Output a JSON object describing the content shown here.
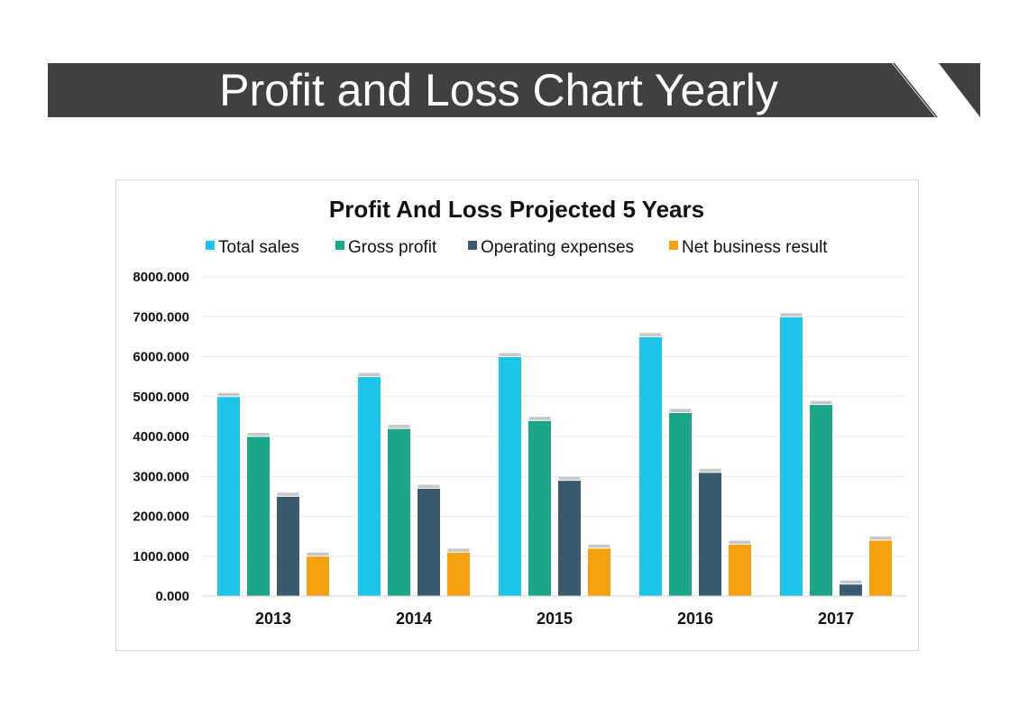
{
  "slide": {
    "title": "Profit and Loss Chart Yearly"
  },
  "colors": {
    "banner": "#404040",
    "total_sales": "#1DC5E8",
    "gross_profit": "#1BA68A",
    "operating_expenses": "#3A5A6D",
    "net_business_result": "#F5A10F"
  },
  "chart_data": {
    "type": "bar",
    "title": "Profit And Loss Projected 5 Years",
    "categories": [
      "2013",
      "2014",
      "2015",
      "2016",
      "2017"
    ],
    "series": [
      {
        "name": "Total sales",
        "color": "#1DC5E8",
        "values": [
          5000,
          5500,
          6000,
          6500,
          7000
        ]
      },
      {
        "name": "Gross profit",
        "color": "#1BA68A",
        "values": [
          4000,
          4200,
          4400,
          4600,
          4800
        ]
      },
      {
        "name": "Operating expenses",
        "color": "#3A5A6D",
        "values": [
          2500,
          2700,
          2900,
          3100,
          300
        ]
      },
      {
        "name": "Net business result",
        "color": "#F5A10F",
        "values": [
          1000,
          1100,
          1200,
          1300,
          1400
        ]
      }
    ],
    "yticks": [
      "0.000",
      "1000.000",
      "2000.000",
      "3000.000",
      "4000.000",
      "5000.000",
      "6000.000",
      "7000.000",
      "8000.000"
    ],
    "ylim": [
      0,
      8000
    ],
    "legend_position": "top",
    "grid": true
  }
}
